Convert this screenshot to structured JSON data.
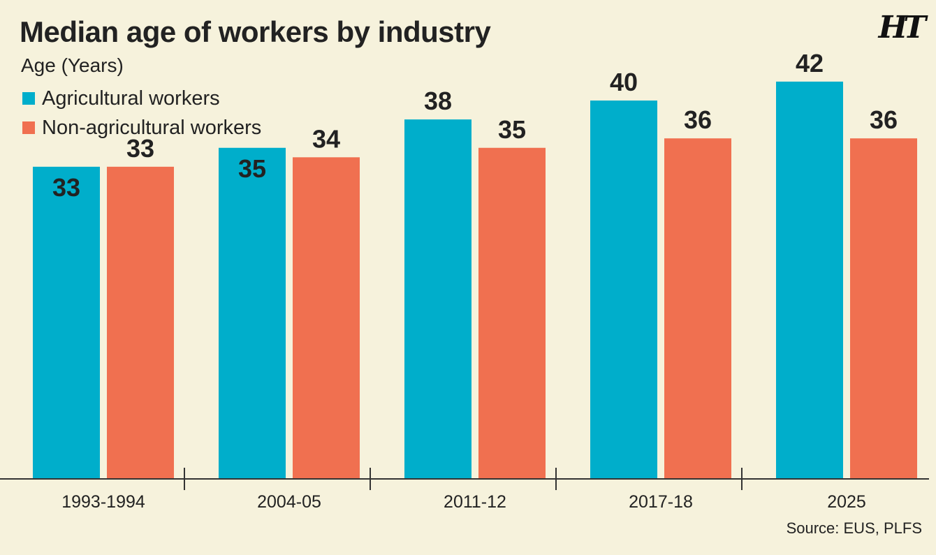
{
  "header": {
    "title": "Median age of workers by industry",
    "logo": "HT"
  },
  "footer": {
    "source": "Source: EUS, PLFS"
  },
  "colors": {
    "agri": "#00aecb",
    "nonagri": "#f07050",
    "background": "#f6f2dc",
    "axis": "#333333"
  },
  "chart_data": {
    "type": "bar",
    "title": "Median age of workers by industry",
    "ylabel": "Age (Years)",
    "xlabel": "",
    "categories": [
      "1993-1994",
      "2004-05",
      "2011-12",
      "2017-18",
      "2025"
    ],
    "series": [
      {
        "name": "Agricultural workers",
        "values": [
          33,
          35,
          38,
          40,
          42
        ]
      },
      {
        "name": "Non-agricultural workers",
        "values": [
          33,
          34,
          35,
          36,
          36
        ]
      }
    ],
    "ylim": [
      0,
      42
    ],
    "grid": false,
    "legend_position": "top-left",
    "data_labels": true
  }
}
